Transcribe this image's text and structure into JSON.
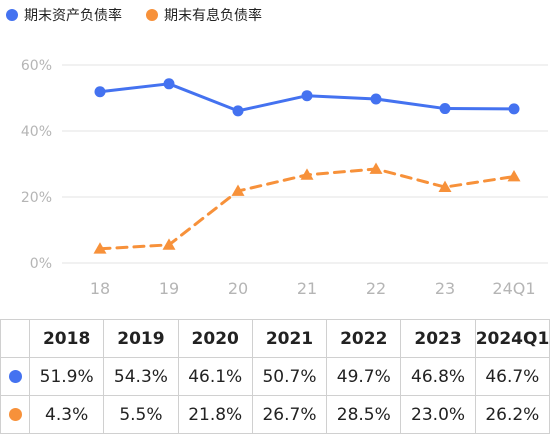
{
  "legend": {
    "series1": "期末资产负债率",
    "series2": "期末有息负债率"
  },
  "colors": {
    "series1": "#4472f0",
    "series2": "#f7913a"
  },
  "chart_data": {
    "type": "line",
    "x": [
      "18",
      "19",
      "20",
      "21",
      "22",
      "23",
      "24Q1"
    ],
    "ylim": [
      0,
      60
    ],
    "yticks": [
      "0%",
      "20%",
      "40%",
      "60%"
    ],
    "grid": true,
    "legend_position": "top-left",
    "series": [
      {
        "name": "期末资产负债率",
        "values": [
          51.9,
          54.3,
          46.1,
          50.7,
          49.7,
          46.8,
          46.7
        ],
        "style": "solid",
        "marker": "circle",
        "color": "#4472f0"
      },
      {
        "name": "期末有息负债率",
        "values": [
          4.3,
          5.5,
          21.8,
          26.7,
          28.5,
          23.0,
          26.2
        ],
        "style": "dashed",
        "marker": "triangle",
        "color": "#f7913a"
      }
    ]
  },
  "table": {
    "headers": [
      "2018",
      "2019",
      "2020",
      "2021",
      "2022",
      "2023",
      "2024Q1"
    ],
    "rows": [
      [
        "51.9%",
        "54.3%",
        "46.1%",
        "50.7%",
        "49.7%",
        "46.8%",
        "46.7%"
      ],
      [
        "4.3%",
        "5.5%",
        "21.8%",
        "26.7%",
        "28.5%",
        "23.0%",
        "26.2%"
      ]
    ]
  }
}
